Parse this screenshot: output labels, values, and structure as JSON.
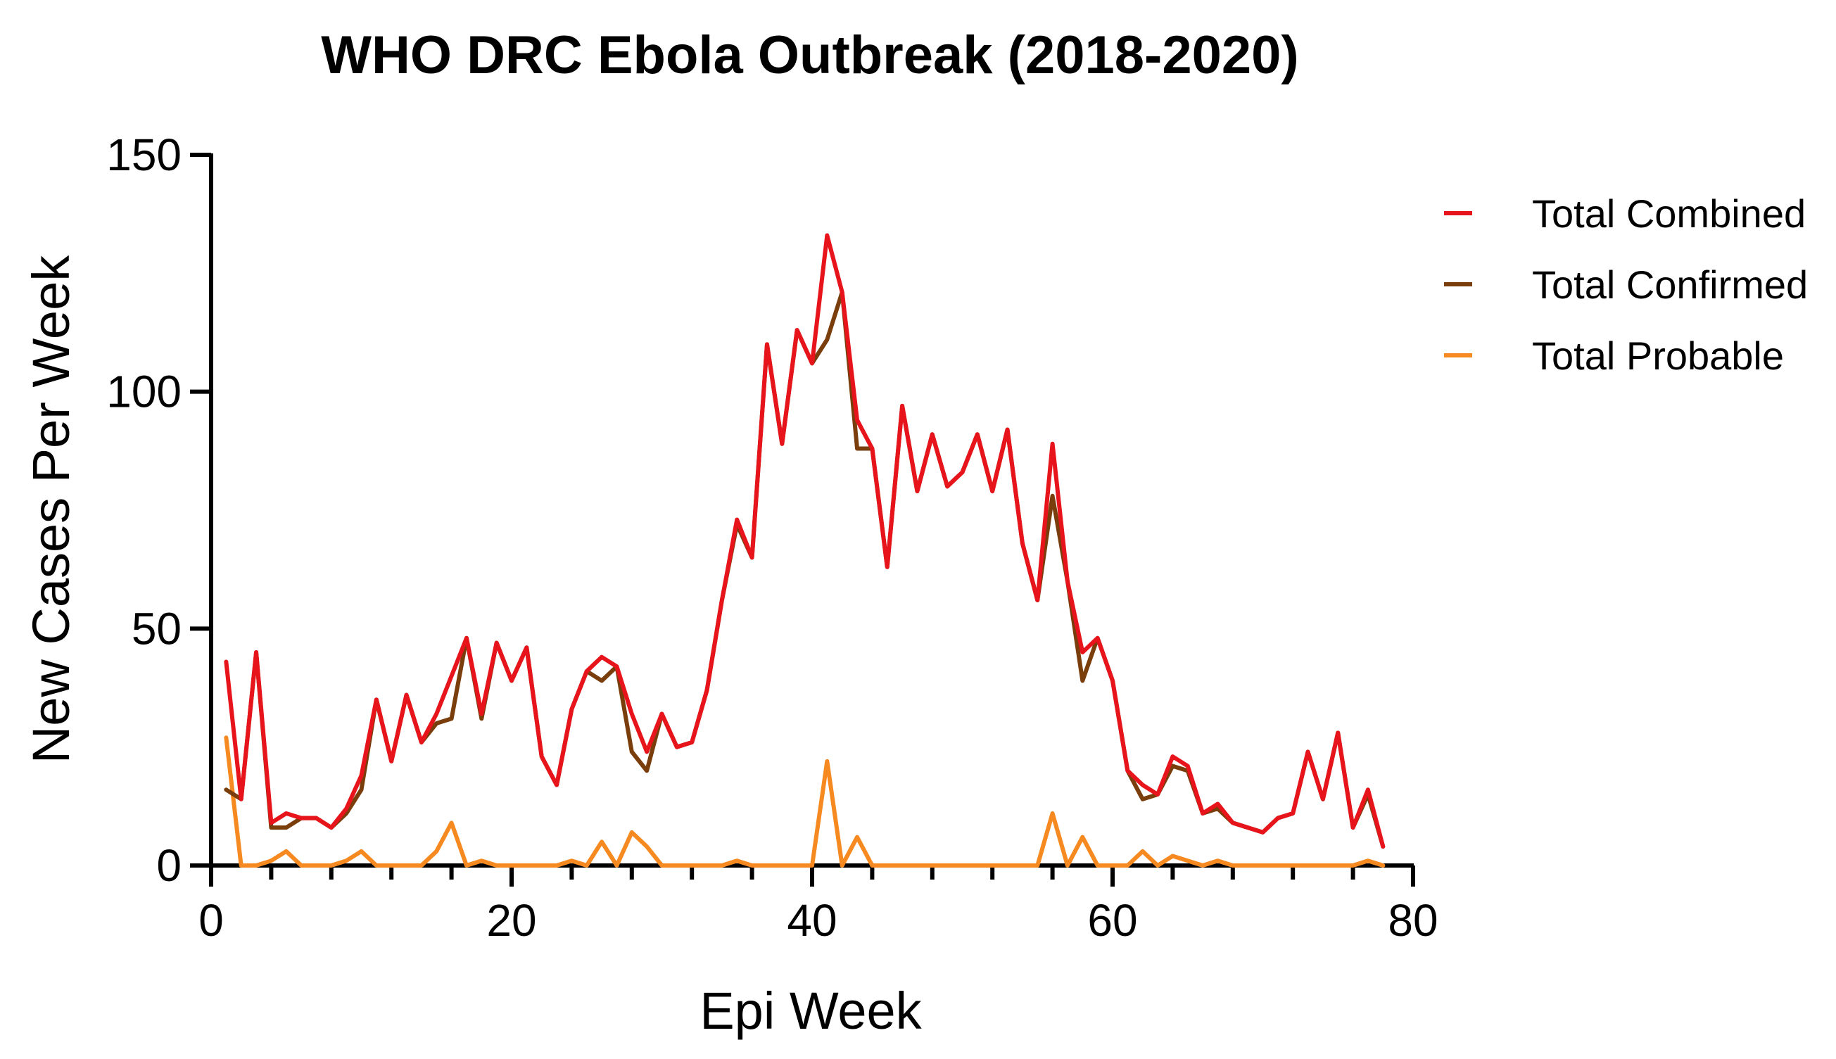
{
  "chart_data": {
    "type": "line",
    "title": "WHO DRC Ebola Outbreak (2018-2020)",
    "xlabel": "Epi Week",
    "ylabel": "New Cases Per Week",
    "xlim": [
      0,
      80
    ],
    "ylim": [
      0,
      150
    ],
    "x_ticks": [
      0,
      20,
      40,
      60,
      80
    ],
    "x_tick_labels": [
      "0",
      "20",
      "40",
      "60",
      "80"
    ],
    "x_minor_step": 4,
    "y_ticks": [
      0,
      50,
      100,
      150
    ],
    "y_tick_labels": [
      "0",
      "50",
      "100",
      "150"
    ],
    "grid": false,
    "legend_position": "right",
    "x": [
      1,
      2,
      3,
      4,
      5,
      6,
      7,
      8,
      9,
      10,
      11,
      12,
      13,
      14,
      15,
      16,
      17,
      18,
      19,
      20,
      21,
      22,
      23,
      24,
      25,
      26,
      27,
      28,
      29,
      30,
      31,
      32,
      33,
      34,
      35,
      36,
      37,
      38,
      39,
      40,
      41,
      42,
      43,
      44,
      45,
      46,
      47,
      48,
      49,
      50,
      51,
      52,
      53,
      54,
      55,
      56,
      57,
      58,
      59,
      60,
      61,
      62,
      63,
      64,
      65,
      66,
      67,
      68,
      69,
      70,
      71,
      72,
      73,
      74,
      75,
      76,
      77,
      78
    ],
    "series": [
      {
        "name": "Total Combined",
        "color": "#e8141c",
        "values": [
          43,
          14,
          45,
          9,
          11,
          10,
          10,
          8,
          12,
          19,
          35,
          22,
          36,
          26,
          32,
          40,
          48,
          32,
          47,
          39,
          46,
          23,
          17,
          33,
          41,
          44,
          42,
          32,
          24,
          32,
          25,
          26,
          37,
          56,
          73,
          65,
          110,
          89,
          113,
          106,
          133,
          121,
          94,
          88,
          63,
          97,
          79,
          91,
          80,
          83,
          91,
          79,
          92,
          68,
          56,
          89,
          60,
          45,
          48,
          39,
          20,
          17,
          15,
          23,
          21,
          11,
          13,
          9,
          8,
          7,
          10,
          11,
          24,
          14,
          28,
          8,
          16,
          4
        ]
      },
      {
        "name": "Total Confirmed",
        "color": "#7a3d0c",
        "values": [
          16,
          14,
          45,
          8,
          8,
          10,
          10,
          8,
          11,
          16,
          35,
          22,
          36,
          26,
          30,
          31,
          48,
          31,
          47,
          39,
          46,
          23,
          17,
          33,
          41,
          39,
          42,
          24,
          20,
          32,
          25,
          26,
          37,
          56,
          72,
          65,
          110,
          89,
          113,
          106,
          111,
          121,
          88,
          88,
          63,
          97,
          79,
          91,
          80,
          83,
          91,
          79,
          92,
          68,
          56,
          78,
          60,
          39,
          48,
          39,
          20,
          14,
          15,
          21,
          20,
          11,
          12,
          9,
          8,
          7,
          10,
          11,
          24,
          14,
          28,
          8,
          15,
          4
        ]
      },
      {
        "name": "Total Probable",
        "color": "#f6891f",
        "values": [
          27,
          0,
          0,
          1,
          3,
          0,
          0,
          0,
          1,
          3,
          0,
          0,
          0,
          0,
          3,
          9,
          0,
          1,
          0,
          0,
          0,
          0,
          0,
          1,
          0,
          5,
          0,
          7,
          4,
          0,
          0,
          0,
          0,
          0,
          1,
          0,
          0,
          0,
          0,
          0,
          22,
          0,
          6,
          0,
          0,
          0,
          0,
          0,
          0,
          0,
          0,
          0,
          0,
          0,
          0,
          11,
          0,
          6,
          0,
          0,
          0,
          3,
          0,
          2,
          1,
          0,
          1,
          0,
          0,
          0,
          0,
          0,
          0,
          0,
          0,
          0,
          1,
          0
        ]
      }
    ]
  }
}
